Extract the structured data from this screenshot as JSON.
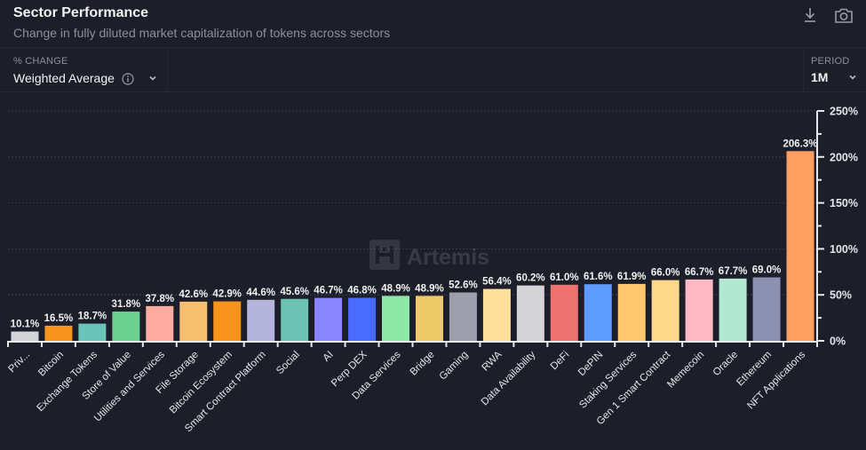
{
  "header": {
    "title": "Sector Performance",
    "subtitle": "Change in fully diluted market capitalization of tokens across sectors",
    "icons": [
      "download-icon",
      "camera-icon"
    ]
  },
  "controls": {
    "change": {
      "label": "% CHANGE",
      "value": "Weighted Average",
      "info_icon": "info-icon"
    },
    "period": {
      "label": "PERIOD",
      "value": "1M"
    }
  },
  "watermark": "Artemis",
  "chart_data": {
    "type": "bar",
    "title": "Sector Performance",
    "xlabel": "",
    "ylabel": "% Change",
    "ylim": [
      0,
      250
    ],
    "yticks": [
      0,
      50,
      100,
      150,
      200,
      250
    ],
    "ytick_labels": [
      "0%",
      "50%",
      "100%",
      "150%",
      "200%",
      "250%"
    ],
    "y_axis_position": "right",
    "grid": true,
    "categories": [
      "Priv...",
      "Bitcoin",
      "Exchange Tokens",
      "Store of Value",
      "Utilities and Services",
      "File Storage",
      "Bitcoin Ecosystem",
      "Smart Contract Platform",
      "Social",
      "AI",
      "Perp DEX",
      "Data Services",
      "Bridge",
      "Gaming",
      "RWA",
      "Data Availability",
      "DeFi",
      "DePIN",
      "Staking Services",
      "Gen 1 Smart Contract",
      "Memecoin",
      "Oracle",
      "Ethereum",
      "NFT Applications"
    ],
    "values": [
      10.1,
      16.5,
      18.7,
      31.8,
      37.8,
      42.6,
      42.9,
      44.6,
      45.6,
      46.7,
      46.8,
      48.9,
      48.9,
      52.6,
      56.4,
      60.2,
      61.0,
      61.6,
      61.9,
      66.0,
      66.7,
      67.7,
      69.0,
      206.3
    ],
    "data_labels": [
      "10.1%",
      "16.5%",
      "18.7%",
      "31.8%",
      "37.8%",
      "42.6%",
      "42.9%",
      "44.6%",
      "45.6%",
      "46.7%",
      "46.8%",
      "48.9%",
      "48.9%",
      "52.6%",
      "56.4%",
      "60.2%",
      "61.0%",
      "61.6%",
      "61.9%",
      "66.0%",
      "66.7%",
      "67.7%",
      "69.0%",
      "206.3%"
    ],
    "colors": [
      "#d4d4d6",
      "#f7941d",
      "#6cc3b9",
      "#6dd28f",
      "#ffaba0",
      "#f5c16f",
      "#f7941d",
      "#b4b3dc",
      "#6cc3b3",
      "#8a84ff",
      "#4a6bff",
      "#8ee8a8",
      "#eecb68",
      "#9d9dac",
      "#ffe09c",
      "#d4d4d6",
      "#ee7370",
      "#5d9bff",
      "#ffc86e",
      "#ffd88c",
      "#ffb8c6",
      "#b0e8d4",
      "#8c91b2",
      "#ff9e5e"
    ]
  }
}
